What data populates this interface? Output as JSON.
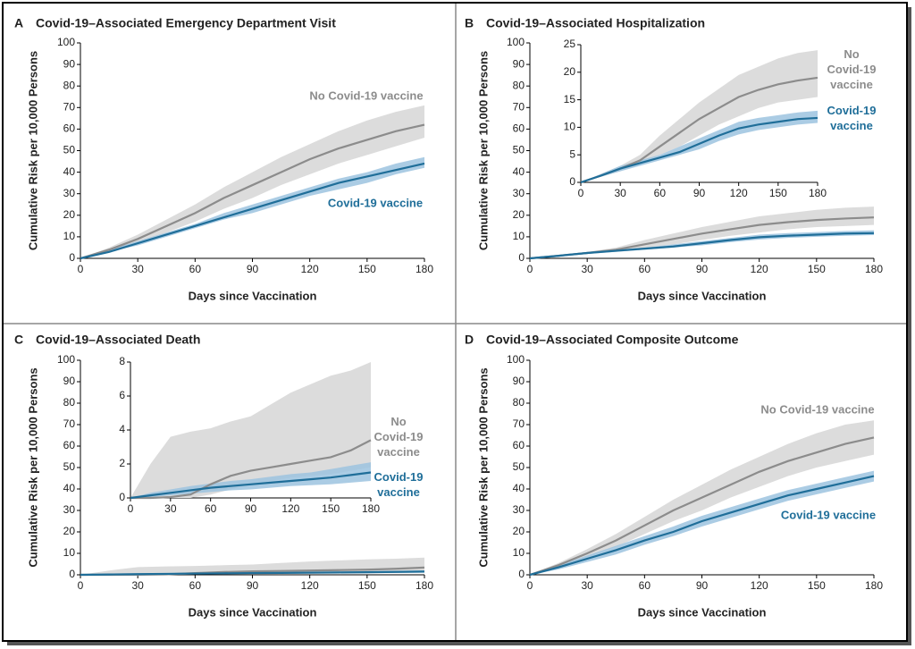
{
  "chart_data": [
    {
      "type": "line",
      "letter": "A",
      "title": "Covid-19–Associated Emergency Department Visit",
      "xlabel": "Days since Vaccination",
      "ylabel": "Cumulative Risk per 10,000 Persons",
      "x": [
        0,
        15,
        30,
        45,
        60,
        75,
        90,
        105,
        120,
        135,
        150,
        165,
        180
      ],
      "xlim": [
        0,
        180
      ],
      "xticks": [
        0,
        30,
        60,
        90,
        120,
        150,
        180
      ],
      "ylim": [
        0,
        100
      ],
      "yticks": [
        0,
        10,
        20,
        30,
        40,
        50,
        60,
        70,
        80,
        90,
        100
      ],
      "series": [
        {
          "name": "No Covid-19 vaccine",
          "color": "#8c8c8c",
          "band_color": "#dcdcdc",
          "values": [
            0,
            4,
            9,
            15,
            21,
            28,
            34,
            40,
            46,
            51,
            55,
            59,
            62
          ],
          "lower": [
            0,
            3,
            7,
            12,
            17,
            23,
            28,
            34,
            39,
            44,
            48,
            52,
            56
          ],
          "upper": [
            0,
            5,
            11,
            18,
            25,
            33,
            40,
            47,
            53,
            59,
            64,
            68,
            71
          ]
        },
        {
          "name": "Covid-19 vaccine",
          "color": "#1f6e99",
          "band_color": "#9cc3df",
          "values": [
            0,
            3,
            7,
            11,
            15,
            19,
            23,
            27,
            31,
            35,
            38,
            41,
            44
          ],
          "lower": [
            0,
            3,
            6,
            10,
            14,
            18,
            21,
            25,
            29,
            32,
            35,
            39,
            42
          ],
          "upper": [
            0,
            4,
            8,
            12,
            16,
            21,
            25,
            29,
            33,
            37,
            40,
            44,
            47
          ]
        }
      ]
    },
    {
      "type": "line",
      "letter": "B",
      "title": "Covid-19–Associated Hospitalization",
      "xlabel": "Days since Vaccination",
      "ylabel": "Cumulative Risk per 10,000 Persons",
      "x": [
        0,
        15,
        30,
        45,
        60,
        75,
        90,
        105,
        120,
        135,
        150,
        165,
        180
      ],
      "xlim": [
        0,
        180
      ],
      "xticks": [
        0,
        30,
        60,
        90,
        120,
        150,
        180
      ],
      "ylim": [
        0,
        100
      ],
      "yticks": [
        0,
        10,
        20,
        30,
        40,
        50,
        60,
        70,
        80,
        90,
        100
      ],
      "inset": {
        "ylim": [
          0,
          25
        ],
        "yticks": [
          0,
          5,
          10,
          15,
          20,
          25
        ],
        "xticks": [
          0,
          30,
          60,
          90,
          120,
          150,
          180
        ]
      },
      "series": [
        {
          "name": "No Covid-19 vaccine",
          "color": "#8c8c8c",
          "band_color": "#dcdcdc",
          "values": [
            0,
            1.2,
            2.5,
            4,
            6.5,
            9,
            11.5,
            13.5,
            15.5,
            16.8,
            17.8,
            18.5,
            19
          ],
          "lower": [
            0,
            1,
            2,
            3.5,
            5,
            6.5,
            8.5,
            10.5,
            12,
            13.5,
            14.5,
            15,
            15.5
          ],
          "upper": [
            0,
            1.5,
            3,
            5,
            8.5,
            11.5,
            14.5,
            17,
            19.5,
            21,
            22.5,
            23.5,
            24
          ]
        },
        {
          "name": "Covid-19 vaccine",
          "color": "#1f6e99",
          "band_color": "#9cc3df",
          "values": [
            0,
            1.2,
            2.5,
            3.5,
            4.5,
            5.5,
            7,
            8.5,
            9.8,
            10.5,
            11,
            11.5,
            11.7
          ],
          "lower": [
            0,
            1,
            2,
            3,
            4,
            5,
            6,
            7.5,
            8.7,
            9.5,
            10,
            10.5,
            10.8
          ],
          "upper": [
            0,
            1.5,
            3,
            4,
            5,
            6.5,
            8,
            9.5,
            11,
            11.7,
            12.2,
            12.7,
            13
          ]
        }
      ]
    },
    {
      "type": "line",
      "letter": "C",
      "title": "Covid-19–Associated Death",
      "xlabel": "Days since Vaccination",
      "ylabel": "Cumulative Risk per 10,000 Persons",
      "x": [
        0,
        15,
        30,
        45,
        60,
        75,
        90,
        105,
        120,
        135,
        150,
        165,
        180
      ],
      "xlim": [
        0,
        180
      ],
      "xticks": [
        0,
        30,
        60,
        90,
        120,
        150,
        180
      ],
      "ylim": [
        0,
        100
      ],
      "yticks": [
        0,
        10,
        20,
        30,
        40,
        50,
        60,
        70,
        80,
        90,
        100
      ],
      "inset": {
        "ylim": [
          0,
          8
        ],
        "yticks": [
          0,
          2,
          4,
          6,
          8
        ],
        "xticks": [
          0,
          30,
          60,
          90,
          120,
          150,
          180
        ]
      },
      "series": [
        {
          "name": "No Covid-19 vaccine",
          "color": "#8c8c8c",
          "band_color": "#dcdcdc",
          "values": [
            0,
            0,
            0.05,
            0.2,
            0.8,
            1.3,
            1.6,
            1.8,
            2,
            2.2,
            2.4,
            2.8,
            3.4
          ],
          "lower": [
            0,
            0,
            0,
            0,
            0.2,
            0.5,
            0.8,
            1,
            1.2,
            1.3,
            1.4,
            1.6,
            1.8
          ],
          "upper": [
            0,
            2,
            3.6,
            3.9,
            4.1,
            4.5,
            4.8,
            5.5,
            6.2,
            6.7,
            7.2,
            7.5,
            8
          ]
        },
        {
          "name": "Covid-19 vaccine",
          "color": "#1f6e99",
          "band_color": "#9cc3df",
          "values": [
            0,
            0.15,
            0.3,
            0.45,
            0.6,
            0.7,
            0.8,
            0.9,
            1,
            1.1,
            1.2,
            1.35,
            1.5
          ],
          "lower": [
            0,
            0.05,
            0.15,
            0.25,
            0.35,
            0.45,
            0.5,
            0.6,
            0.7,
            0.75,
            0.8,
            0.9,
            1
          ],
          "upper": [
            0,
            0.3,
            0.5,
            0.7,
            0.85,
            1,
            1.1,
            1.25,
            1.4,
            1.5,
            1.7,
            1.9,
            2.1
          ]
        }
      ]
    },
    {
      "type": "line",
      "letter": "D",
      "title": "Covid-19–Associated Composite Outcome",
      "xlabel": "Days since Vaccination",
      "ylabel": "Cumulative Risk per 10,000 Persons",
      "x": [
        0,
        15,
        30,
        45,
        60,
        75,
        90,
        105,
        120,
        135,
        150,
        165,
        180
      ],
      "xlim": [
        0,
        180
      ],
      "xticks": [
        0,
        30,
        60,
        90,
        120,
        150,
        180
      ],
      "ylim": [
        0,
        100
      ],
      "yticks": [
        0,
        10,
        20,
        30,
        40,
        50,
        60,
        70,
        80,
        90,
        100
      ],
      "series": [
        {
          "name": "No Covid-19 vaccine",
          "color": "#8c8c8c",
          "band_color": "#dcdcdc",
          "values": [
            0,
            4.5,
            10,
            16,
            23,
            30,
            36,
            42,
            48,
            53,
            57,
            61,
            64
          ],
          "lower": [
            0,
            3.5,
            8,
            13,
            19,
            25,
            30,
            36,
            41,
            46,
            50,
            53,
            56
          ],
          "upper": [
            0,
            5.5,
            12,
            19,
            27,
            35,
            42,
            49,
            55,
            61,
            66,
            70,
            72
          ]
        },
        {
          "name": "Covid-19 vaccine",
          "color": "#1f6e99",
          "band_color": "#9cc3df",
          "values": [
            0,
            3.5,
            7.5,
            11.5,
            16,
            20,
            25,
            29,
            33,
            37,
            40,
            43,
            46
          ],
          "lower": [
            0,
            2.5,
            6,
            9.5,
            14,
            18,
            22.5,
            26.5,
            30.5,
            34.5,
            37.5,
            40.5,
            43.5
          ],
          "upper": [
            0,
            4.5,
            9,
            13.5,
            18,
            22.5,
            27.5,
            31.5,
            35.5,
            39.5,
            42.5,
            45.5,
            48.5
          ]
        }
      ]
    }
  ]
}
